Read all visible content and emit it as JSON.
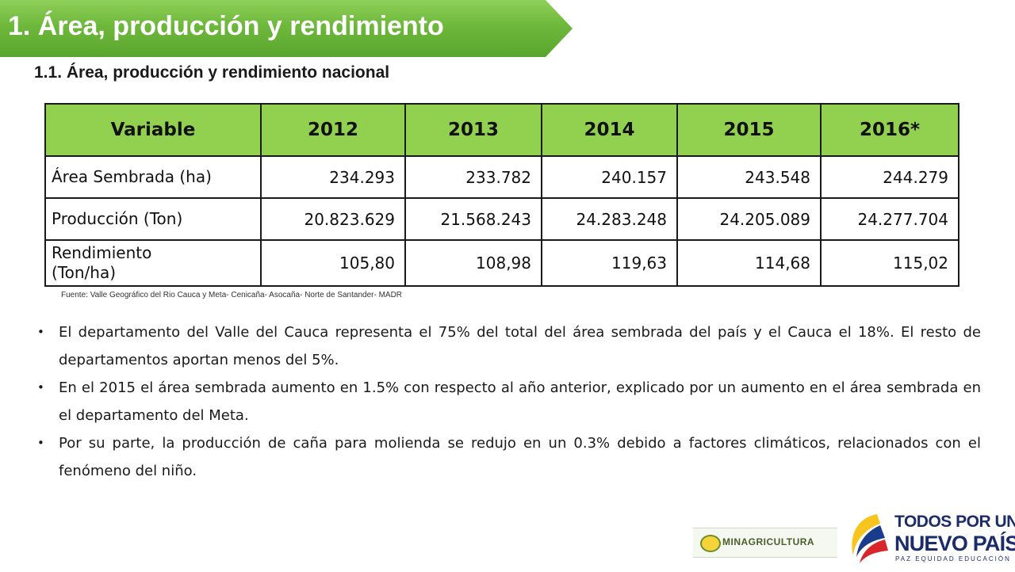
{
  "header": {
    "title": "1. Área, producción y rendimiento",
    "accent_color": "#6db83b"
  },
  "section": {
    "subtitle": "1.1. Área, producción y rendimiento nacional"
  },
  "table": {
    "header_color": "#92d050",
    "columns": [
      "Variable",
      "2012",
      "2013",
      "2014",
      "2015",
      "2016*"
    ],
    "rows": [
      {
        "label": "Área Sembrada (ha)",
        "values": [
          "234.293",
          "233.782",
          "240.157",
          "243.548",
          "244.279"
        ]
      },
      {
        "label": "Producción (Ton)",
        "values": [
          "20.823.629",
          "21.568.243",
          "24.283.248",
          "24.205.089",
          "24.277.704"
        ]
      },
      {
        "label_line1": "Rendimiento",
        "label_line2": "(Ton/ha)",
        "values": [
          "105,80",
          "108,98",
          "119,63",
          "114,68",
          "115,02"
        ]
      }
    ]
  },
  "source": "Fuente: Valle Geográfico del Rio Cauca y Meta- Cenicaña- Asocaña- Norte de Santander- MADR",
  "bullets": [
    "El departamento del Valle del Cauca representa el 75% del total del área sembrada del país y el Cauca el 18%. El resto de departamentos aportan menos del 5%.",
    "En el 2015 el área sembrada aumento en 1.5% con respecto al año anterior, explicado por un aumento en el área sembrada en el departamento del Meta.",
    "Por su parte, la producción de caña para molienda se redujo en un 0.3% debido a factores climáticos, relacionados con el fenómeno del niño."
  ],
  "bullet_glyph": "•",
  "logos": {
    "minagricultura": "MINAGRICULTURA",
    "tppn_line1": "TODOS POR UN",
    "tppn_line2": "NUEVO PAÍS",
    "tppn_line3": "PAZ EQUIDAD EDUCACIÓN"
  }
}
